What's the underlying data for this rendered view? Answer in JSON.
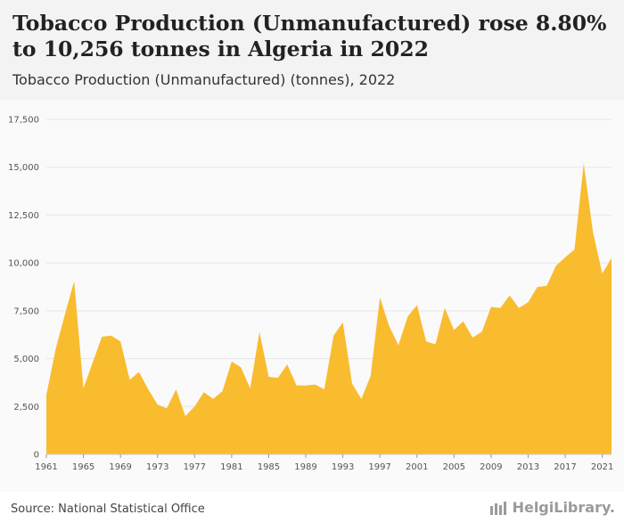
{
  "header": {
    "title": "Tobacco Production (Unmanufactured) rose 8.80% to 10,256 tonnes in Algeria in 2022",
    "subtitle": "Tobacco Production (Unmanufactured) (tonnes), 2022"
  },
  "footer": {
    "source": "Source: National Statistical Office",
    "logo_text": "HelgiLibrary."
  },
  "chart_data": {
    "type": "area",
    "title": "Tobacco Production (Unmanufactured) rose 8.80% to 10,256 tonnes in Algeria in 2022",
    "subtitle": "Tobacco Production (Unmanufactured) (tonnes), 2022",
    "xlabel": "",
    "ylabel": "",
    "ylim": [
      0,
      17500
    ],
    "yticks": [
      0,
      2500,
      5000,
      7500,
      10000,
      12500,
      15000,
      17500
    ],
    "ytick_labels": [
      "0",
      "2,500",
      "5,000",
      "7,500",
      "10,000",
      "12,500",
      "15,000",
      "17,500"
    ],
    "xticks": [
      1961,
      1965,
      1969,
      1973,
      1977,
      1981,
      1985,
      1989,
      1993,
      1997,
      2001,
      2005,
      2009,
      2013,
      2017,
      2021
    ],
    "grid": true,
    "fill_color": "#f9bc2f",
    "x": [
      1961,
      1962,
      1963,
      1964,
      1965,
      1966,
      1967,
      1968,
      1969,
      1970,
      1971,
      1972,
      1973,
      1974,
      1975,
      1976,
      1977,
      1978,
      1979,
      1980,
      1981,
      1982,
      1983,
      1984,
      1985,
      1986,
      1987,
      1988,
      1989,
      1990,
      1991,
      1992,
      1993,
      1994,
      1995,
      1996,
      1997,
      1998,
      1999,
      2000,
      2001,
      2002,
      2003,
      2004,
      2005,
      2006,
      2007,
      2008,
      2009,
      2010,
      2011,
      2012,
      2013,
      2014,
      2015,
      2016,
      2017,
      2018,
      2019,
      2020,
      2021,
      2022
    ],
    "values": [
      3100,
      5500,
      7300,
      9050,
      3450,
      4800,
      6150,
      6200,
      5900,
      3900,
      4300,
      3400,
      2600,
      2400,
      3400,
      2000,
      2500,
      3250,
      2900,
      3300,
      4850,
      4550,
      3450,
      6400,
      4050,
      4000,
      4700,
      3600,
      3600,
      3650,
      3400,
      6200,
      6900,
      3700,
      2900,
      4100,
      8200,
      6700,
      5700,
      7200,
      7800,
      5900,
      5750,
      7650,
      6500,
      6950,
      6100,
      6400,
      7700,
      7650,
      8300,
      7650,
      7950,
      8750,
      8800,
      9850,
      10300,
      10700,
      15200,
      11600,
      9450,
      10256
    ]
  }
}
